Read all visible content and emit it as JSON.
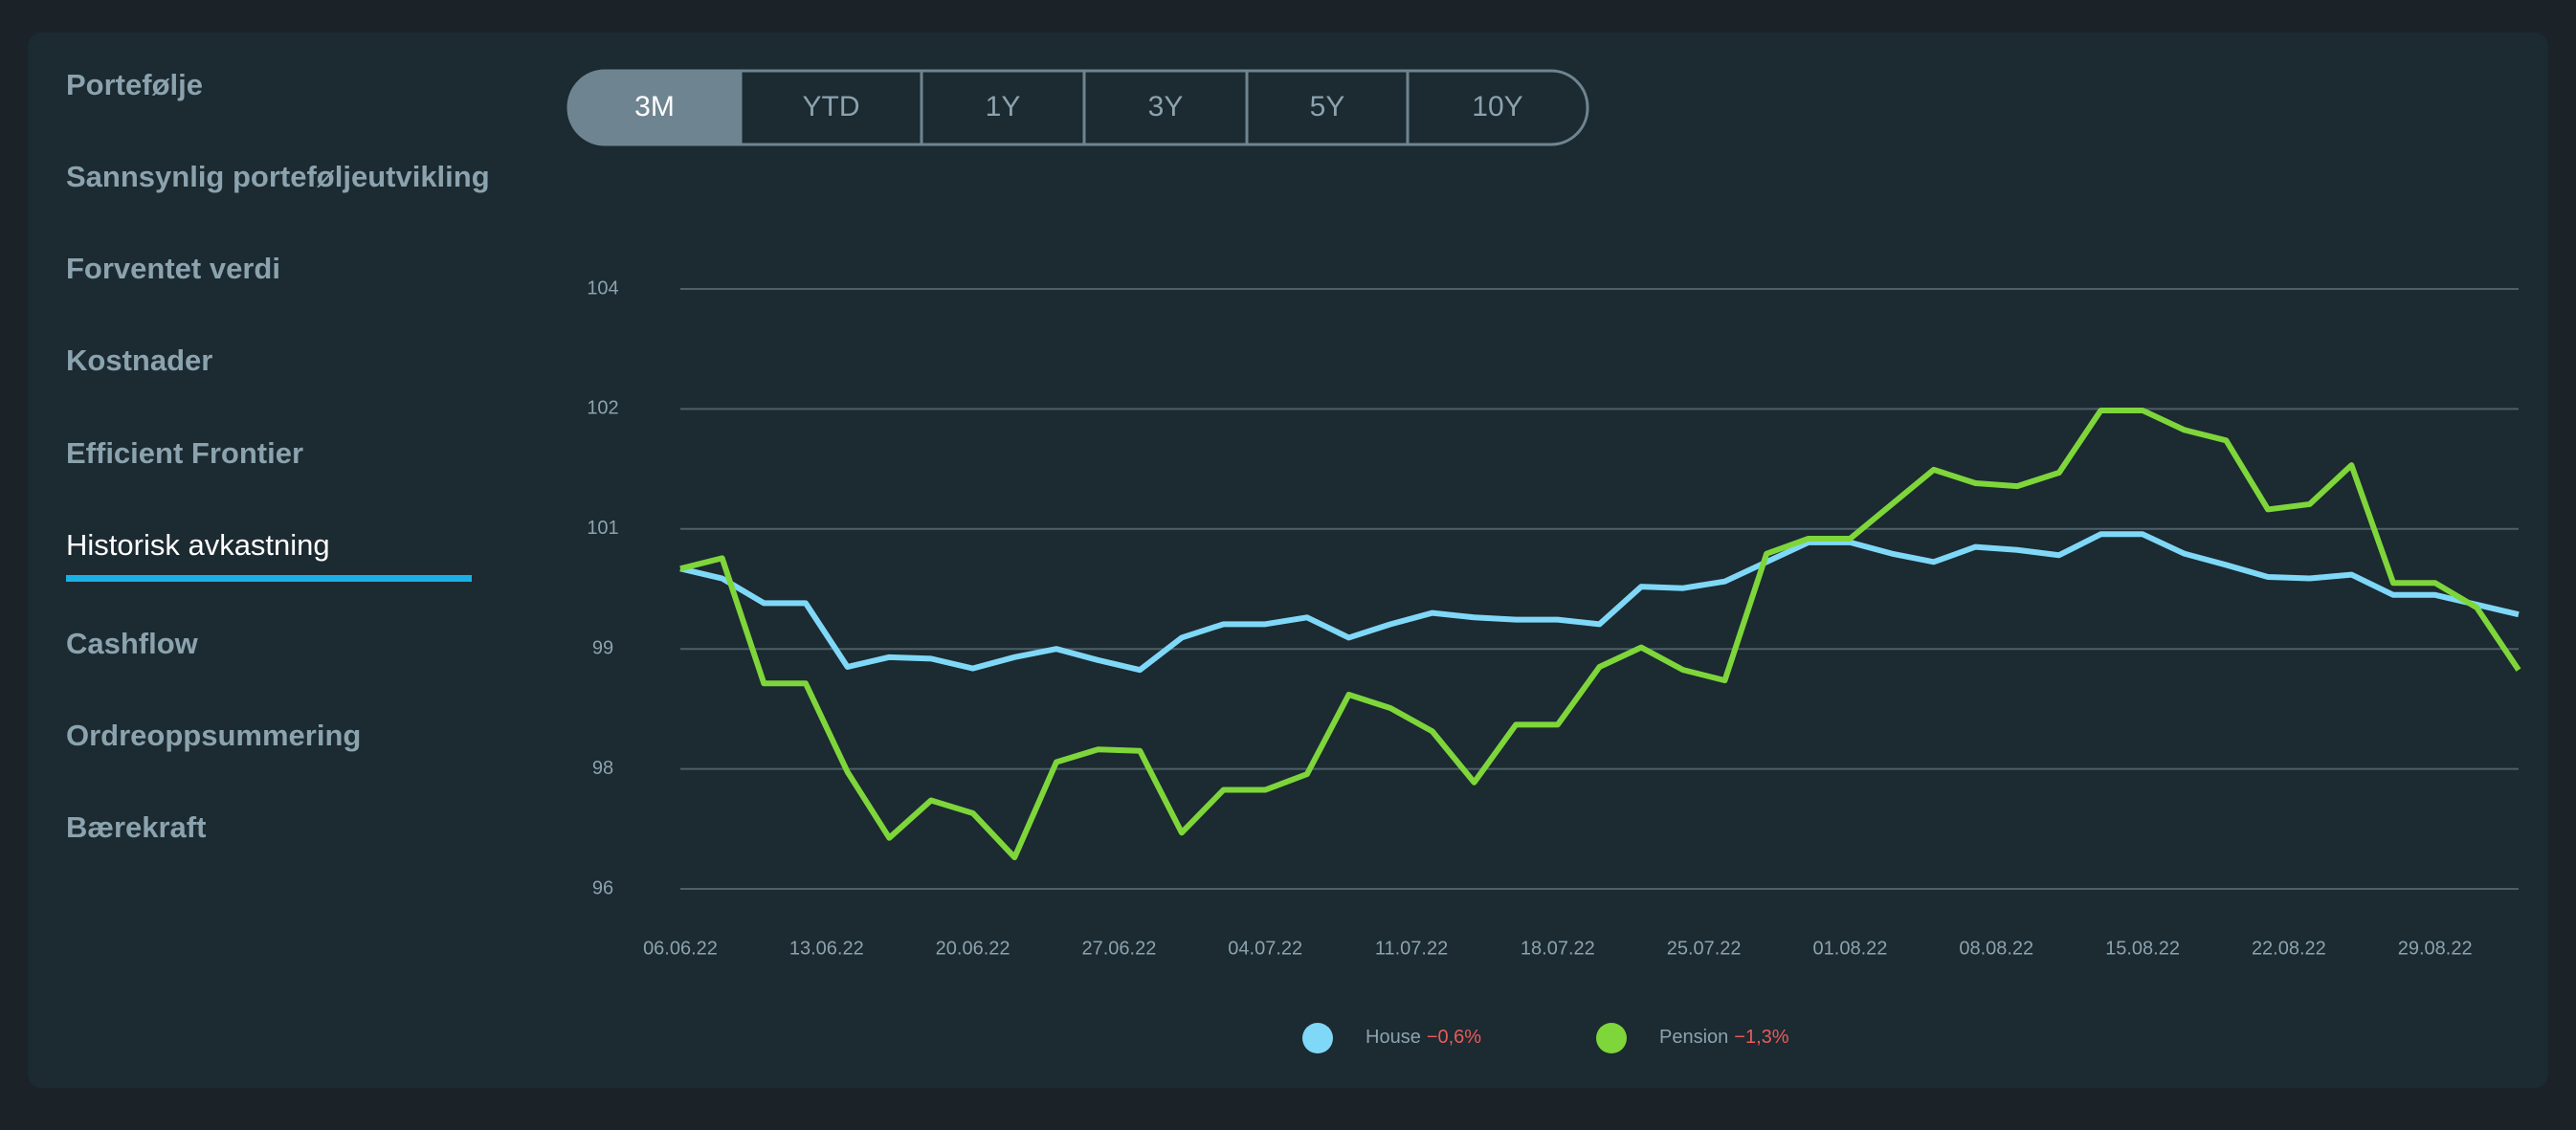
{
  "sidebar": {
    "items": [
      "Portefølje",
      "Sannsynlig porteføljeutvikling",
      "Forventet verdi",
      "Kostnader",
      "Efficient Frontier",
      "Historisk avkastning",
      "Cashflow",
      "Ordreoppsummering",
      "Bærekraft"
    ],
    "active": 5
  },
  "periods": {
    "options": [
      "3M",
      "YTD",
      "1Y",
      "3Y",
      "5Y",
      "10Y"
    ],
    "active": 0
  },
  "chart_data": {
    "type": "line",
    "x": [
      0,
      1,
      2,
      3,
      4,
      5,
      6,
      7,
      8,
      9,
      10,
      11,
      12,
      13,
      14,
      15,
      16,
      17,
      18,
      19,
      20,
      21,
      22,
      23,
      24,
      25,
      26,
      27,
      28,
      29,
      30,
      31,
      32,
      33,
      34,
      35,
      36,
      37,
      38,
      39,
      40,
      41,
      42,
      43,
      44
    ],
    "xlim": [
      0,
      44
    ],
    "xticks": [
      {
        "value": 0,
        "label": "06.06.22"
      },
      {
        "value": 3.5,
        "label": "13.06.22"
      },
      {
        "value": 7,
        "label": "20.06.22"
      },
      {
        "value": 10.5,
        "label": "27.06.22"
      },
      {
        "value": 14,
        "label": "04.07.22"
      },
      {
        "value": 17.5,
        "label": "11.07.22"
      },
      {
        "value": 21,
        "label": "18.07.22"
      },
      {
        "value": 24.5,
        "label": "25.07.22"
      },
      {
        "value": 28,
        "label": "01.08.22"
      },
      {
        "value": 31.5,
        "label": "08.08.22"
      },
      {
        "value": 35,
        "label": "15.08.22"
      },
      {
        "value": 38.5,
        "label": "22.08.22"
      },
      {
        "value": 42,
        "label": "29.08.22"
      }
    ],
    "ylim": [
      96,
      104
    ],
    "yticks": [
      96,
      {
        "value": 97.6,
        "label": "98"
      },
      {
        "value": 99.2,
        "label": "99"
      },
      {
        "value": 100.8,
        "label": "101"
      },
      {
        "value": 102.4,
        "label": "102"
      },
      104
    ],
    "grid": true,
    "series": [
      {
        "name": "House",
        "color": "#7fd8f7",
        "change": "−0,6%",
        "values": [
          100.27,
          100.14,
          99.81,
          99.81,
          98.96,
          99.09,
          99.07,
          98.94,
          99.09,
          99.2,
          99.05,
          98.92,
          99.35,
          99.53,
          99.53,
          99.62,
          99.35,
          99.53,
          99.68,
          99.62,
          99.59,
          99.59,
          99.53,
          100.03,
          100.01,
          100.1,
          100.36,
          100.62,
          100.62,
          100.47,
          100.36,
          100.56,
          100.52,
          100.45,
          100.73,
          100.73,
          100.47,
          100.32,
          100.16,
          100.14,
          100.19,
          99.92,
          99.92,
          99.79,
          99.66
        ]
      },
      {
        "name": "Pension",
        "color": "#7ed63a",
        "change": "−1,3%",
        "values": [
          100.27,
          100.41,
          98.74,
          98.74,
          97.56,
          96.68,
          97.18,
          97.01,
          96.42,
          97.69,
          97.86,
          97.84,
          96.75,
          97.32,
          97.32,
          97.53,
          98.59,
          98.41,
          98.1,
          97.42,
          98.19,
          98.19,
          98.96,
          99.22,
          98.92,
          98.78,
          100.47,
          100.67,
          100.67,
          101.13,
          101.59,
          101.41,
          101.37,
          101.55,
          102.38,
          102.38,
          102.12,
          101.98,
          101.06,
          101.13,
          101.65,
          100.08,
          100.08,
          99.75,
          98.92
        ]
      }
    ]
  }
}
